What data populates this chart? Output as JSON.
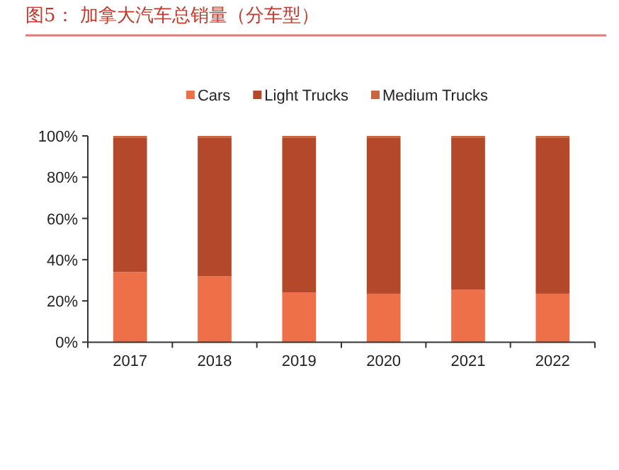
{
  "chart_data": {
    "type": "bar",
    "title": "图5：  加拿大汽车总销量（分车型）",
    "stacked": true,
    "categories": [
      "2017",
      "2018",
      "2019",
      "2020",
      "2021",
      "2022"
    ],
    "series": [
      {
        "name": "Cars",
        "color": "#ee7049",
        "values": [
          34,
          32,
          24,
          23.5,
          25.5,
          23.5
        ]
      },
      {
        "name": "Light Trucks",
        "color": "#b3482a",
        "values": [
          65,
          67,
          75,
          75.5,
          73.5,
          75.5
        ]
      },
      {
        "name": "Medium Trucks",
        "color": "#c8663f",
        "values": [
          1,
          1,
          1,
          1,
          1,
          1
        ]
      }
    ],
    "ylim": [
      0,
      100
    ],
    "yticks": [
      {
        "value": 0,
        "label": "0%"
      },
      {
        "value": 20,
        "label": "20%"
      },
      {
        "value": 40,
        "label": "40%"
      },
      {
        "value": 60,
        "label": "60%"
      },
      {
        "value": 80,
        "label": "80%"
      },
      {
        "value": 100,
        "label": "100%"
      }
    ],
    "legend": "top",
    "grid": false
  }
}
